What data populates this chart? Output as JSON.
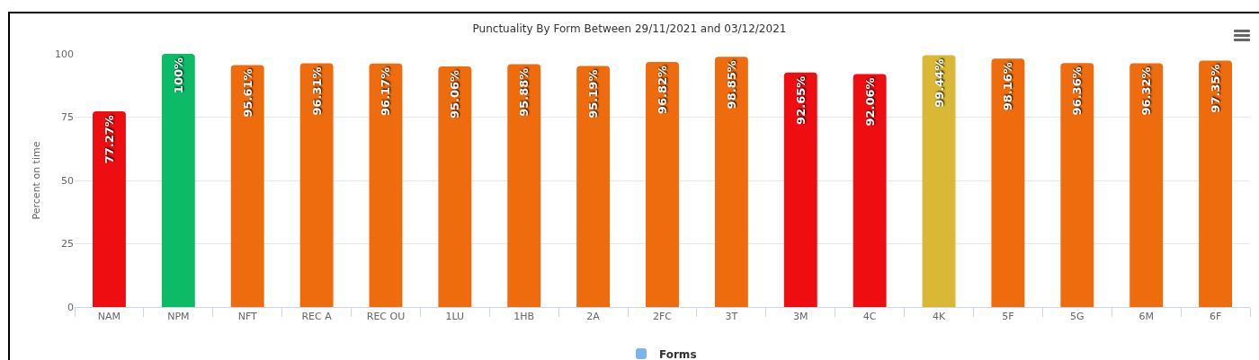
{
  "chart_data": {
    "type": "bar",
    "title": "Punctuality By Form Between 29/11/2021 and 03/12/2021",
    "ylabel": "Percent on time",
    "categories": [
      "NAM",
      "NPM",
      "NFT",
      "REC A",
      "REC OU",
      "1LU",
      "1HB",
      "2A",
      "2FC",
      "3T",
      "3M",
      "4C",
      "4K",
      "5F",
      "5G",
      "6M",
      "6F"
    ],
    "series": [
      {
        "name": "Forms",
        "color": "#7cb5ec",
        "colors": [
          "#ee0d10",
          "#0dba66",
          "#ee6b0e",
          "#ee6b0e",
          "#ee6b0e",
          "#ee6b0e",
          "#ee6b0e",
          "#ee6b0e",
          "#ee6b0e",
          "#ee6b0e",
          "#ee0d10",
          "#ee0d10",
          "#d8b834",
          "#ee6b0e",
          "#ee6b0e",
          "#ee6b0e",
          "#ee6b0e"
        ],
        "values": [
          77.27,
          100,
          95.61,
          96.31,
          96.17,
          95.06,
          95.88,
          95.19,
          96.82,
          98.85,
          92.65,
          92.06,
          99.44,
          98.16,
          96.36,
          96.32,
          97.35
        ],
        "value_labels": [
          "77.27%",
          "100%",
          "95.61%",
          "96.31%",
          "96.17%",
          "95.06%",
          "95.88%",
          "95.19%",
          "96.82%",
          "98.85%",
          "92.65%",
          "92.06%",
          "99.44%",
          "98.16%",
          "96.36%",
          "96.32%",
          "97.35%"
        ]
      }
    ],
    "ylim": [
      0,
      100
    ],
    "yticks": [
      0,
      25,
      50,
      75,
      100
    ],
    "grid": "y",
    "legend": "bottom"
  }
}
